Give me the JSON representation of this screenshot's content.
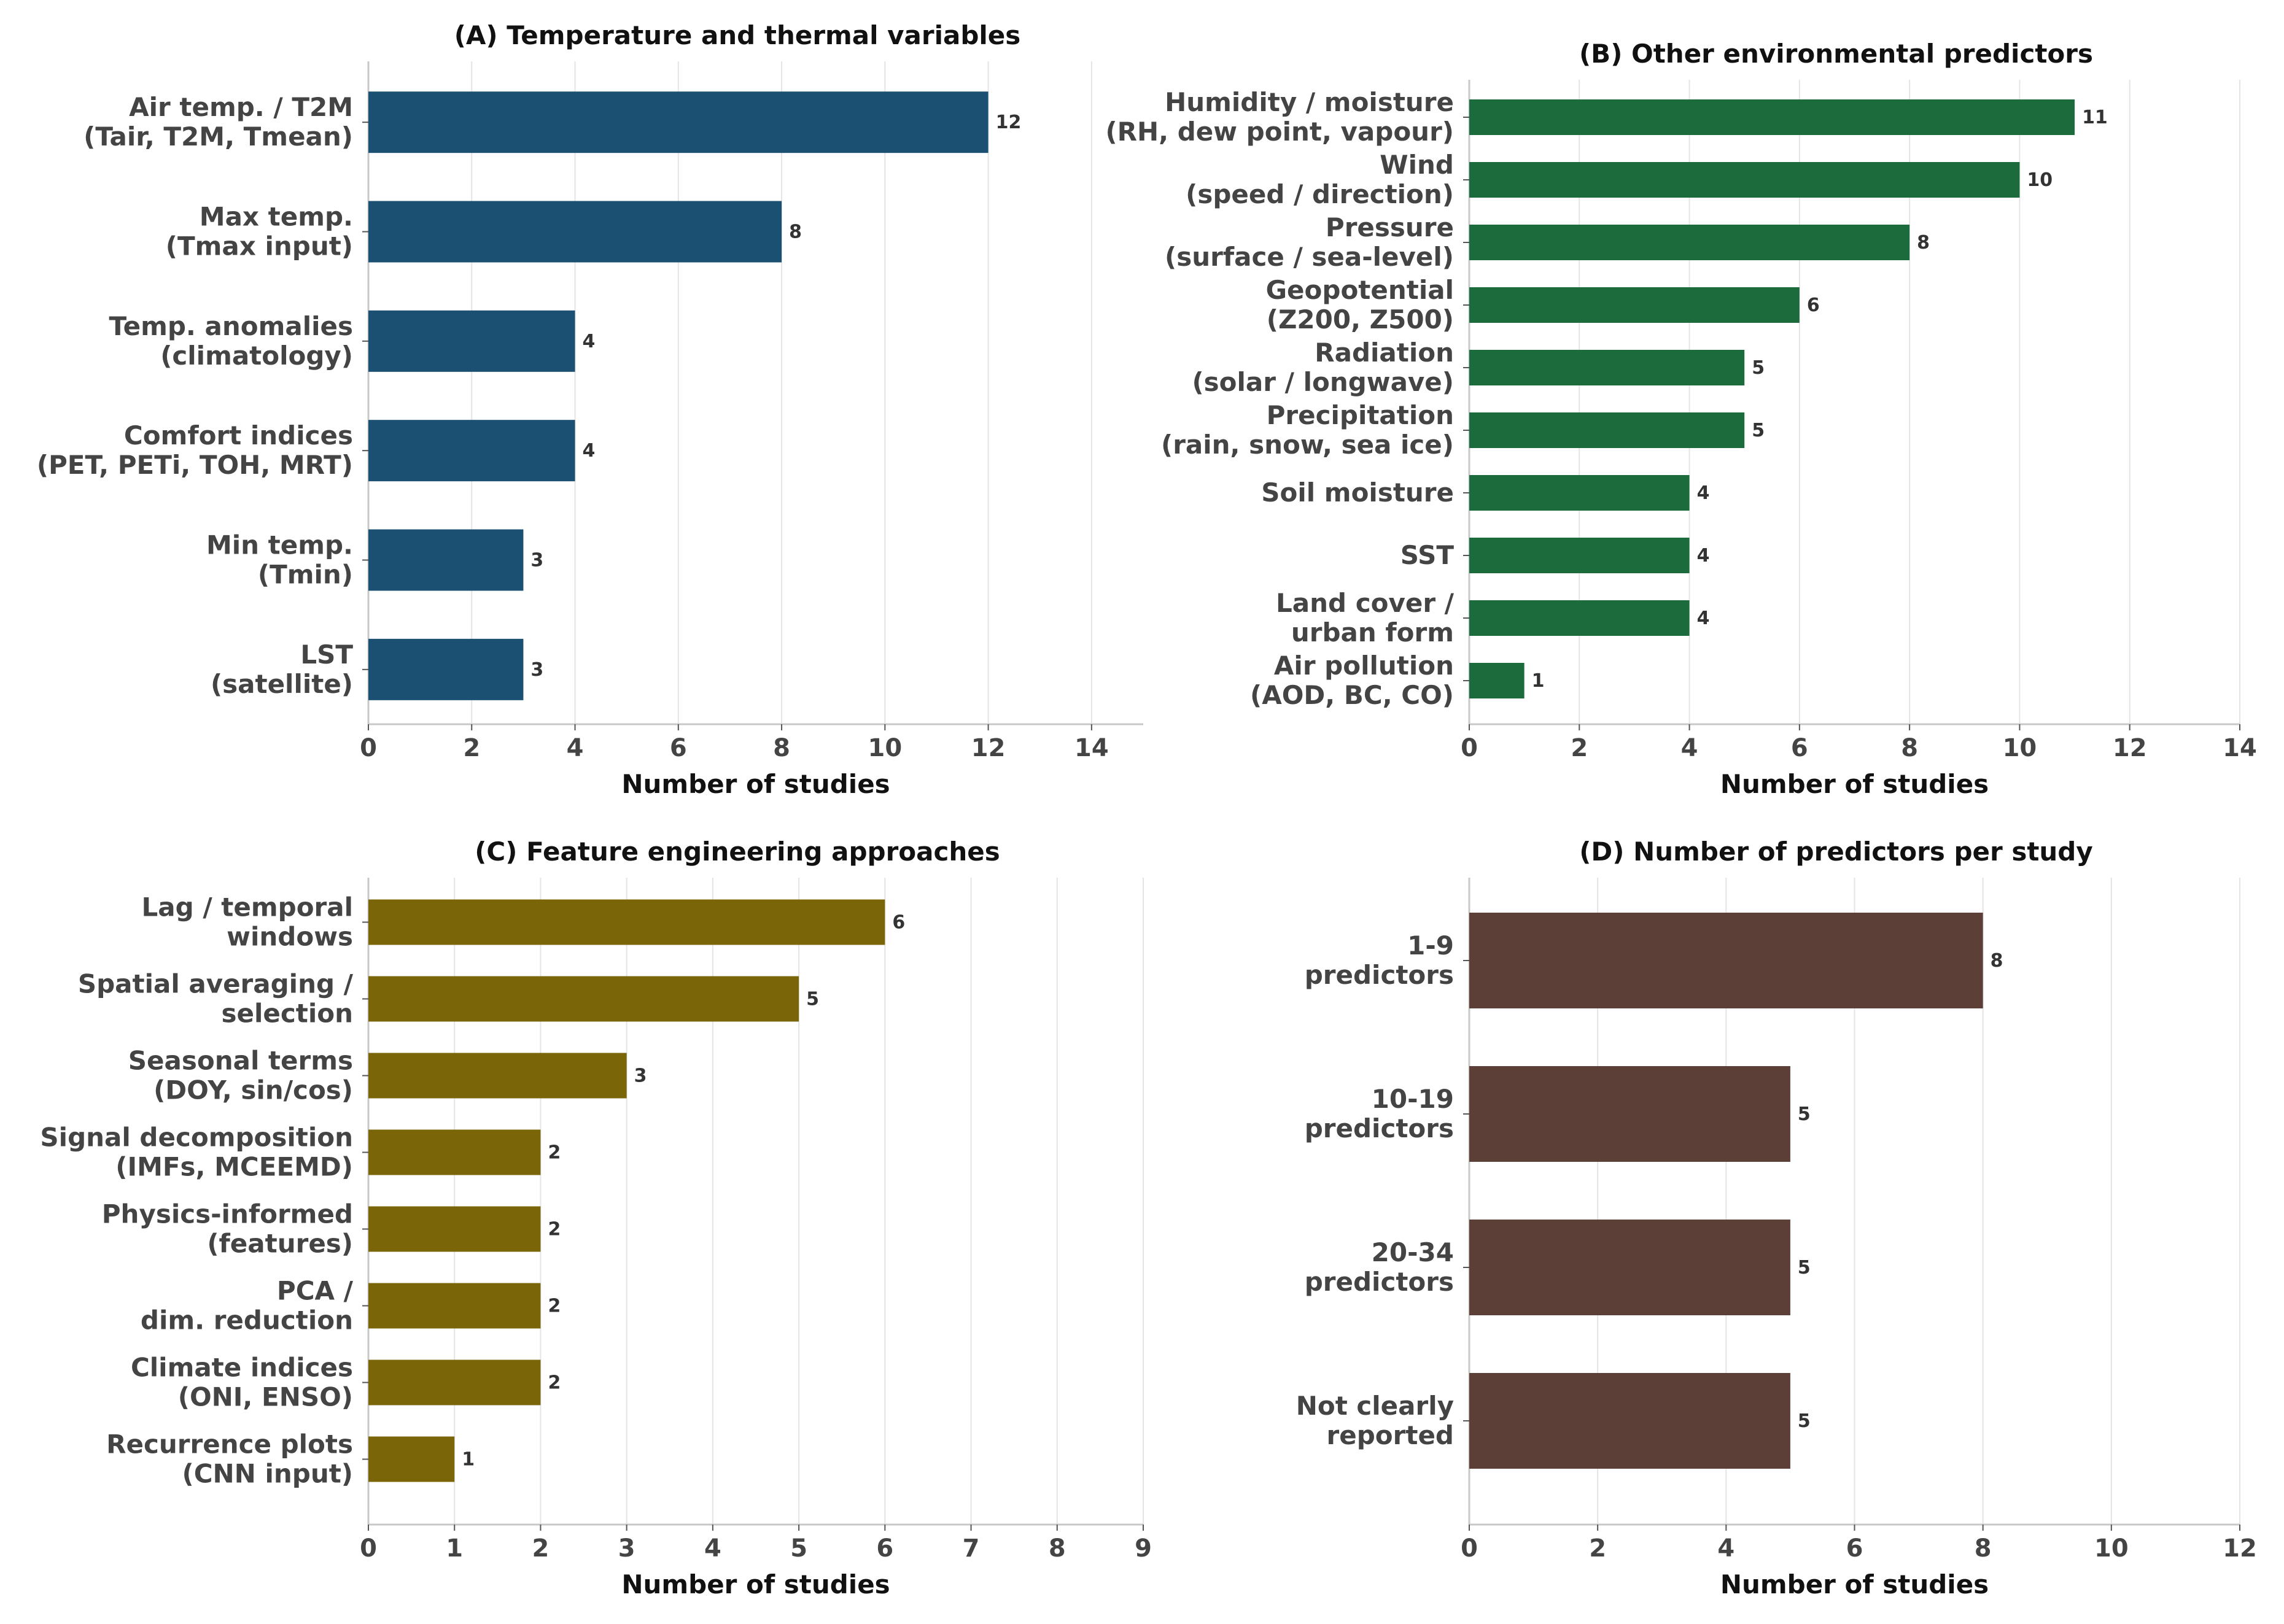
{
  "chart_data": [
    {
      "type": "bar",
      "orientation": "horizontal",
      "title": "(A) Temperature and thermal variables",
      "xlabel": "Number of studies",
      "xlim": [
        0,
        15
      ],
      "xticks": [
        0,
        2,
        4,
        6,
        8,
        10,
        12,
        14
      ],
      "color": "#1b5073",
      "categories": [
        [
          "Air temp. / T2M",
          "(Tair, T2M, Tmean)"
        ],
        [
          "Max temp.",
          "(Tmax input)"
        ],
        [
          "Temp. anomalies",
          "(climatology)"
        ],
        [
          "Comfort indices",
          "(PET, PETi, TOH, MRT)"
        ],
        [
          "Min temp.",
          "(Tmin)"
        ],
        [
          "LST",
          "(satellite)"
        ]
      ],
      "values": [
        12,
        8,
        4,
        4,
        3,
        3
      ]
    },
    {
      "type": "bar",
      "orientation": "horizontal",
      "title": "(B) Other environmental predictors",
      "xlabel": "Number of studies",
      "xlim": [
        0,
        14
      ],
      "xticks": [
        0,
        2,
        4,
        6,
        8,
        10,
        12,
        14
      ],
      "color": "#1c6b3c",
      "categories": [
        [
          "Humidity / moisture",
          "(RH, dew point, vapour)"
        ],
        [
          "Wind",
          "(speed / direction)"
        ],
        [
          "Pressure",
          "(surface / sea-level)"
        ],
        [
          "Geopotential",
          "(Z200, Z500)"
        ],
        [
          "Radiation",
          "(solar / longwave)"
        ],
        [
          "Precipitation",
          "(rain, snow, sea ice)"
        ],
        [
          "Soil moisture"
        ],
        [
          "SST"
        ],
        [
          "Land cover /",
          "urban form"
        ],
        [
          "Air pollution",
          "(AOD, BC, CO)"
        ]
      ],
      "values": [
        11,
        10,
        8,
        6,
        5,
        5,
        4,
        4,
        4,
        1
      ]
    },
    {
      "type": "bar",
      "orientation": "horizontal",
      "title": "(C) Feature engineering approaches",
      "xlabel": "Number of studies",
      "xlim": [
        0,
        9
      ],
      "xticks": [
        0,
        1,
        2,
        3,
        4,
        5,
        6,
        7,
        8,
        9
      ],
      "color": "#7a6508",
      "categories": [
        [
          "Lag / temporal",
          "windows"
        ],
        [
          "Spatial averaging /",
          "selection"
        ],
        [
          "Seasonal terms",
          "(DOY, sin/cos)"
        ],
        [
          "Signal decomposition",
          "(IMFs, MCEEMD)"
        ],
        [
          "Physics-informed",
          "(features)"
        ],
        [
          "PCA /",
          "dim. reduction"
        ],
        [
          "Climate indices",
          "(ONI, ENSO)"
        ],
        [
          "Recurrence plots",
          "(CNN input)"
        ]
      ],
      "values": [
        6,
        5,
        3,
        2,
        2,
        2,
        2,
        1
      ]
    },
    {
      "type": "bar",
      "orientation": "horizontal",
      "title": "(D) Number of predictors per study",
      "xlabel": "Number of studies",
      "xlim": [
        0,
        12
      ],
      "xticks": [
        0,
        2,
        4,
        6,
        8,
        10,
        12
      ],
      "color": "#5c3f37",
      "categories": [
        [
          "1-9",
          "predictors"
        ],
        [
          "10-19",
          "predictors"
        ],
        [
          "20-34",
          "predictors"
        ],
        [
          "Not clearly",
          "reported"
        ]
      ],
      "values": [
        8,
        5,
        5,
        5
      ]
    }
  ]
}
